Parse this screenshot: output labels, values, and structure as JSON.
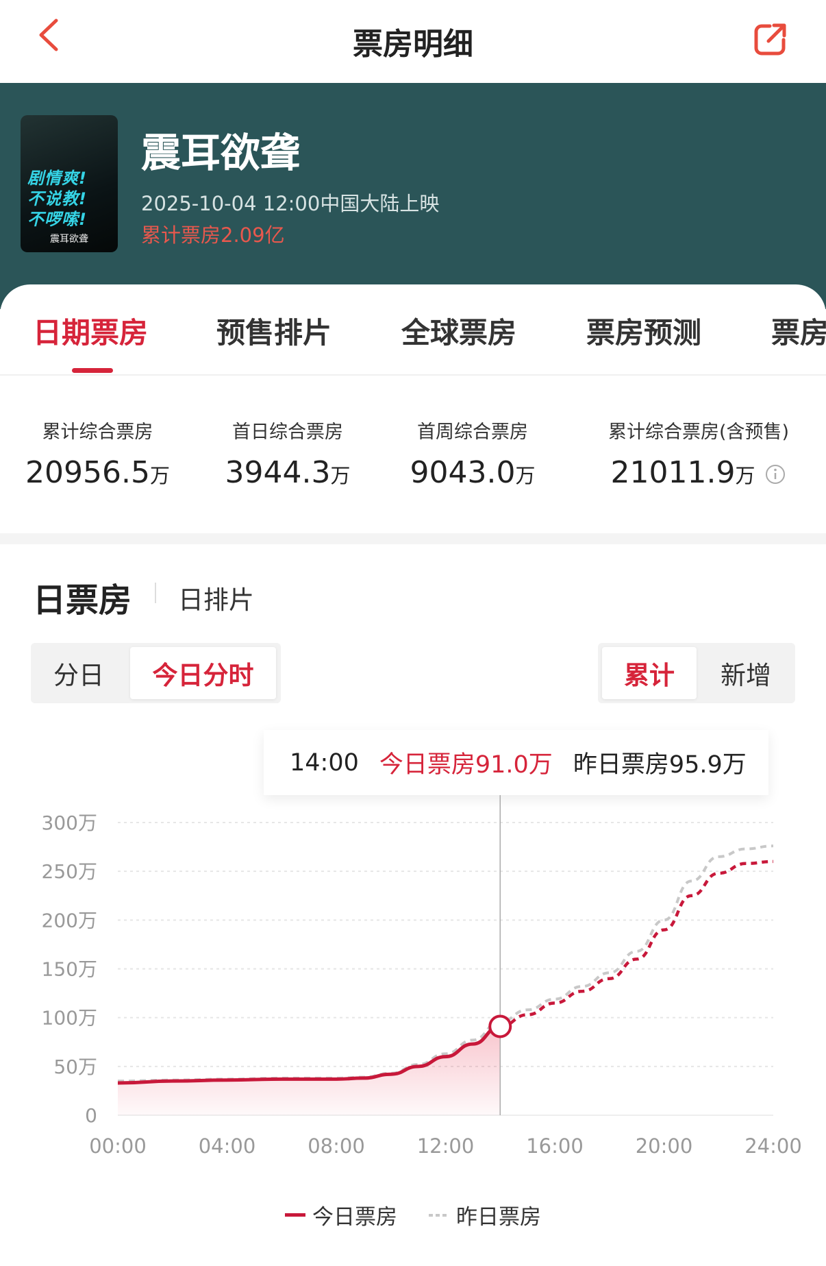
{
  "header": {
    "title": "票房明细",
    "back_icon": "chevron-left-icon",
    "share_icon": "share-icon",
    "accent": "#e84c3d"
  },
  "movie": {
    "title": "震耳欲聋",
    "release": "2025-10-04 12:00中国大陆上映",
    "total_box_office": "累计票房2.09亿",
    "poster_lines": [
      "剧情爽!",
      "不说教!",
      "不啰嗦!"
    ],
    "poster_logo": "震耳欲聋"
  },
  "tabs": [
    {
      "label": "日期票房",
      "active": true
    },
    {
      "label": "预售排片"
    },
    {
      "label": "全球票房"
    },
    {
      "label": "票房预测"
    },
    {
      "label": "票房"
    }
  ],
  "stats": [
    {
      "label": "累计综合票房",
      "value": "20956.5",
      "unit": "万"
    },
    {
      "label": "首日综合票房",
      "value": "3944.3",
      "unit": "万"
    },
    {
      "label": "首周综合票房",
      "value": "9043.0",
      "unit": "万"
    },
    {
      "label": "累计综合票房(含预售)",
      "value": "21011.9",
      "unit": "万"
    }
  ],
  "section": {
    "title": "日票房",
    "subtitle": "日排片"
  },
  "mode_toggle": [
    {
      "label": "分日"
    },
    {
      "label": "今日分时",
      "active": true
    }
  ],
  "metric_toggle": [
    {
      "label": "累计",
      "active": true
    },
    {
      "label": "新增"
    }
  ],
  "tooltip": {
    "time": "14:00",
    "today": "今日票房91.0万",
    "yesterday": "昨日票房95.9万"
  },
  "chart_data": {
    "type": "line",
    "ylim": [
      0,
      300
    ],
    "yticks": [
      "0",
      "50万",
      "100万",
      "150万",
      "200万",
      "250万",
      "300万"
    ],
    "ytick_values": [
      0,
      50,
      100,
      150,
      200,
      250,
      300
    ],
    "xticks": [
      "00:00",
      "04:00",
      "08:00",
      "12:00",
      "16:00",
      "20:00",
      "24:00"
    ],
    "xlim_hours": [
      0,
      24
    ],
    "grid": true,
    "legend_position": "bottom",
    "cursor_hour": 14,
    "series": [
      {
        "name": "今日票房",
        "color": "#c8183a",
        "solid_until_hour": 14,
        "x": [
          0,
          2,
          4,
          6,
          8,
          9,
          10,
          11,
          12,
          13,
          14,
          15,
          16,
          17,
          18,
          19,
          20,
          21,
          22,
          23,
          24
        ],
        "values": [
          33,
          35,
          36,
          37,
          37,
          38,
          42,
          50,
          60,
          73,
          91,
          103,
          115,
          127,
          140,
          160,
          190,
          225,
          248,
          258,
          260
        ]
      },
      {
        "name": "昨日票房",
        "color": "#c8c8c8",
        "x": [
          0,
          2,
          4,
          6,
          8,
          9,
          10,
          11,
          12,
          13,
          14,
          15,
          16,
          17,
          18,
          19,
          20,
          21,
          22,
          23,
          24
        ],
        "values": [
          35,
          36,
          37,
          38,
          38,
          39,
          43,
          52,
          63,
          77,
          95.9,
          108,
          119,
          132,
          146,
          168,
          200,
          240,
          265,
          273,
          276
        ]
      }
    ]
  }
}
